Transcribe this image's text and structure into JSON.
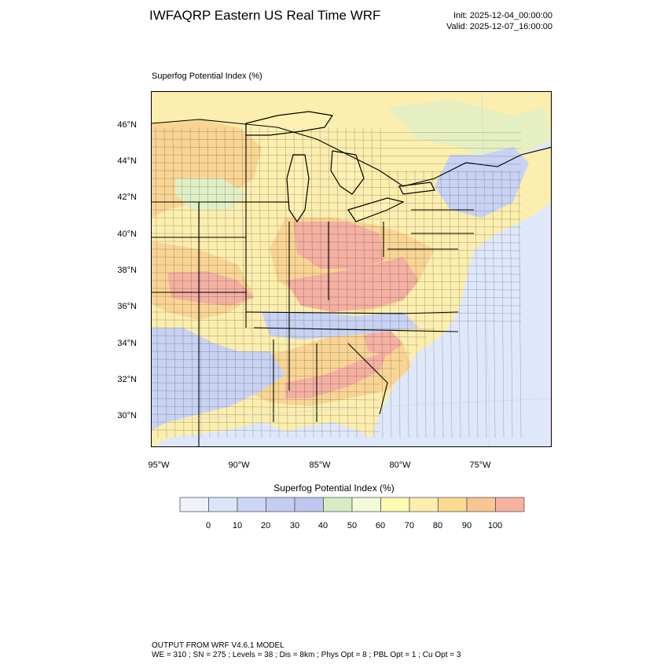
{
  "header": {
    "title": "IWFAQRP Eastern US Real Time WRF",
    "init": "Init: 2025-12-04_00:00:00",
    "valid": "Valid: 2025-12-07_16:00:00"
  },
  "plot": {
    "title": "Superfog Potential Index   (%)",
    "lat_labels": [
      "46°N",
      "44°N",
      "42°N",
      "40°N",
      "38°N",
      "36°N",
      "34°N",
      "32°N",
      "30°N"
    ],
    "lon_labels": [
      "95°W",
      "90°W",
      "85°W",
      "80°W",
      "75°W"
    ]
  },
  "colorbar": {
    "title": "Superfog Potential Index  (%)",
    "colors": [
      "#eef2fb",
      "#dde5f8",
      "#ccd7f6",
      "#c4cdf2",
      "#c0c6ef",
      "#d8ebc4",
      "#f2fbd8",
      "#fffbb0",
      "#fdeeac",
      "#fbdb90",
      "#f9c592",
      "#f5b29f"
    ],
    "labels": [
      "0",
      "10",
      "20",
      "30",
      "40",
      "50",
      "60",
      "70",
      "80",
      "90",
      "100"
    ]
  },
  "map_colors": {
    "ocean": "#dfe7fb",
    "lakes": "#fff1b4",
    "high": "#f4b0a2",
    "mid": "#f9d594",
    "low": "#fbeeae",
    "green": "#e1efc6",
    "blue": "#c8d3f3"
  },
  "footer": {
    "line1": "OUTPUT FROM WRF V4.6.1 MODEL",
    "line2": "WE = 310 ; SN = 275 ; Levels = 38 ; Dis = 8km ; Phys Opt = 8 ; PBL Opt = 1 ; Cu Opt = 3"
  }
}
